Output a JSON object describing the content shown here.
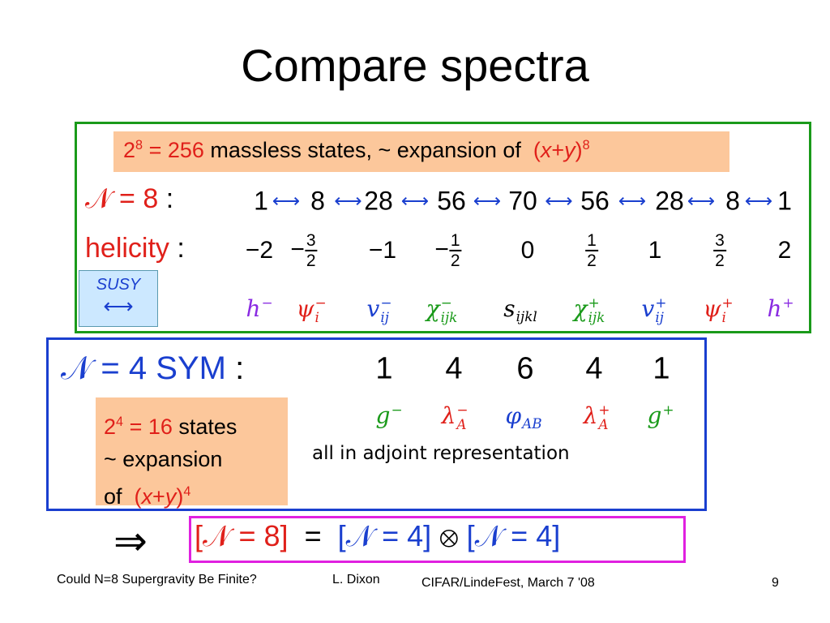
{
  "title": "Compare spectra",
  "n8": {
    "note": {
      "base": "2",
      "exp": "8",
      "eq": "= 256",
      "text": "massless states, ~ expansion of",
      "open": "(",
      "x": "x",
      "plus": "+",
      "y": "y",
      "close": ")",
      "power": "8"
    },
    "label": "𝒩 = 8",
    "colon": ":",
    "multiplicities": [
      1,
      8,
      28,
      56,
      70,
      56,
      28,
      8,
      1
    ],
    "helicity_label": "helicity",
    "helicity_colon": ":",
    "helicities": [
      {
        "text": "−2"
      },
      {
        "sign": "−",
        "num": "3",
        "den": "2"
      },
      {
        "text": "−1"
      },
      {
        "sign": "−",
        "num": "1",
        "den": "2"
      },
      {
        "text": "0"
      },
      {
        "num": "1",
        "den": "2"
      },
      {
        "text": "1"
      },
      {
        "num": "3",
        "den": "2"
      },
      {
        "text": "2"
      }
    ],
    "susy": "SUSY",
    "fields": [
      {
        "symbol": "h",
        "sup": "−",
        "color": "#8a2be2"
      },
      {
        "symbol": "ψ",
        "sup": "−",
        "sub": "i",
        "color": "#e0201a"
      },
      {
        "symbol": "v",
        "sup": "−",
        "sub": "ij",
        "color": "#1a3fcf"
      },
      {
        "symbol": "χ",
        "sup": "−",
        "sub": "ijk",
        "color": "#1a9a1a"
      },
      {
        "symbol": "s",
        "sub": "ijkl",
        "color": "#000000"
      },
      {
        "symbol": "χ",
        "sup": "+",
        "sub": "ijk",
        "color": "#1a9a1a"
      },
      {
        "symbol": "v",
        "sup": "+",
        "sub": "ij",
        "color": "#1a3fcf"
      },
      {
        "symbol": "ψ",
        "sup": "+",
        "sub": "i",
        "color": "#e0201a"
      },
      {
        "symbol": "h",
        "sup": "+",
        "color": "#8a2be2"
      }
    ]
  },
  "n4": {
    "label": "𝒩 = 4 SYM",
    "colon": ":",
    "multiplicities": [
      1,
      4,
      6,
      4,
      1
    ],
    "fields": [
      {
        "symbol": "g",
        "sup": "−",
        "color": "#1a9a1a"
      },
      {
        "symbol": "λ",
        "sup": "−",
        "sub": "A",
        "color": "#e0201a"
      },
      {
        "symbol": "φ",
        "sub": "AB",
        "color": "#1a3fcf"
      },
      {
        "symbol": "λ",
        "sup": "+",
        "sub": "A",
        "color": "#e0201a"
      },
      {
        "symbol": "g",
        "sup": "+",
        "color": "#1a9a1a"
      }
    ],
    "note": {
      "base": "2",
      "exp": "4",
      "eq": "= 16",
      "line1": "states",
      "line2": "~ expansion",
      "line3": "of",
      "open": "(",
      "x": "x",
      "plus": "+",
      "y": "y",
      "close": ")",
      "power": "4"
    },
    "adjoint": "all in adjoint representation"
  },
  "equation": {
    "lhs": "[𝒩 = 8]",
    "eq": "=",
    "a": "[𝒩 = 4]",
    "otimes": "⊗",
    "b": "[𝒩 = 4]"
  },
  "footer": {
    "talk": "Could N=8 Supergravity Be Finite?",
    "author": "L. Dixon",
    "event": "CIFAR/LindeFest,  March 7 '08",
    "page": "9"
  }
}
